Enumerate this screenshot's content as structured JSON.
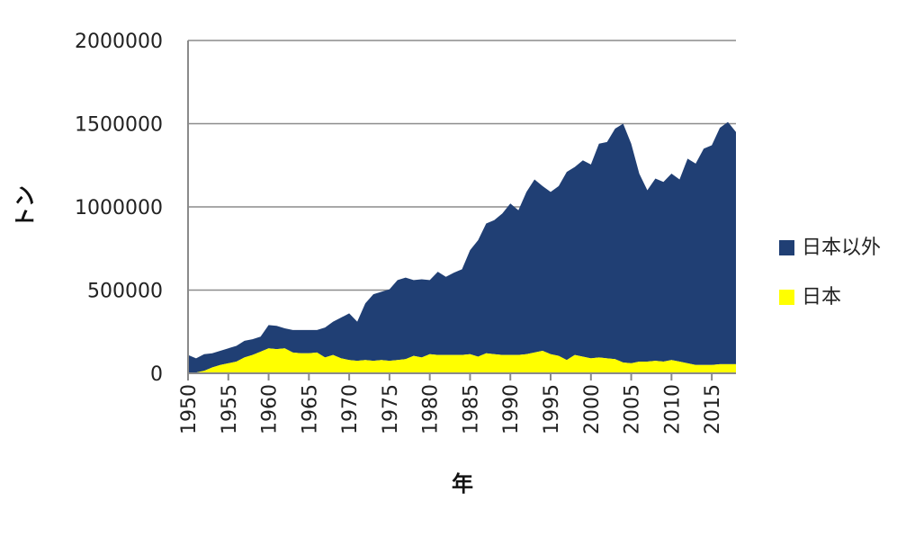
{
  "chart_data": {
    "type": "area",
    "stacked": true,
    "xlabel": "年",
    "ylabel": "トン",
    "ylim": [
      0,
      2000000
    ],
    "yticks": [
      0,
      500000,
      1000000,
      1500000,
      2000000
    ],
    "ytick_labels": [
      "0",
      "500000",
      "1000000",
      "1500000",
      "2000000"
    ],
    "xlim": [
      1950,
      2018
    ],
    "xticks": [
      1950,
      1955,
      1960,
      1965,
      1970,
      1975,
      1980,
      1985,
      1990,
      1995,
      2000,
      2005,
      2010,
      2015
    ],
    "xtick_labels": [
      "1950",
      "1955",
      "1960",
      "1965",
      "1970",
      "1975",
      "1980",
      "1985",
      "1990",
      "1995",
      "2000",
      "2005",
      "2010",
      "2015"
    ],
    "grid": "horizontal",
    "legend_position": "right",
    "x": [
      1950,
      1951,
      1952,
      1953,
      1954,
      1955,
      1956,
      1957,
      1958,
      1959,
      1960,
      1961,
      1962,
      1963,
      1964,
      1965,
      1966,
      1967,
      1968,
      1969,
      1970,
      1971,
      1972,
      1973,
      1974,
      1975,
      1976,
      1977,
      1978,
      1979,
      1980,
      1981,
      1982,
      1983,
      1984,
      1985,
      1986,
      1987,
      1988,
      1989,
      1990,
      1991,
      1992,
      1993,
      1994,
      1995,
      1996,
      1997,
      1998,
      1999,
      2000,
      2001,
      2002,
      2003,
      2004,
      2005,
      2006,
      2007,
      2008,
      2009,
      2010,
      2011,
      2012,
      2013,
      2014,
      2015,
      2016,
      2017,
      2018
    ],
    "series": [
      {
        "name": "日本",
        "color": "#ffff00",
        "values": [
          5000,
          5000,
          15000,
          35000,
          50000,
          60000,
          70000,
          95000,
          110000,
          130000,
          150000,
          145000,
          150000,
          125000,
          120000,
          120000,
          125000,
          95000,
          110000,
          90000,
          80000,
          75000,
          80000,
          75000,
          80000,
          75000,
          80000,
          85000,
          105000,
          95000,
          115000,
          110000,
          110000,
          110000,
          110000,
          115000,
          100000,
          120000,
          115000,
          110000,
          110000,
          110000,
          115000,
          125000,
          135000,
          115000,
          105000,
          80000,
          110000,
          100000,
          90000,
          95000,
          90000,
          85000,
          65000,
          60000,
          70000,
          70000,
          75000,
          70000,
          80000,
          70000,
          60000,
          50000,
          50000,
          50000,
          55000,
          55000,
          55000
        ]
      },
      {
        "name": "日本以外",
        "color": "#203f74",
        "values": [
          105000,
          85000,
          100000,
          85000,
          85000,
          90000,
          95000,
          100000,
          95000,
          90000,
          140000,
          140000,
          120000,
          135000,
          140000,
          140000,
          135000,
          180000,
          200000,
          245000,
          280000,
          235000,
          340000,
          400000,
          410000,
          430000,
          480000,
          490000,
          455000,
          470000,
          445000,
          500000,
          470000,
          495000,
          515000,
          625000,
          700000,
          780000,
          805000,
          850000,
          910000,
          870000,
          975000,
          1040000,
          990000,
          975000,
          1020000,
          1130000,
          1130000,
          1180000,
          1165000,
          1285000,
          1300000,
          1385000,
          1435000,
          1320000,
          1130000,
          1030000,
          1095000,
          1080000,
          1120000,
          1095000,
          1230000,
          1210000,
          1300000,
          1320000,
          1420000,
          1455000,
          1395000
        ]
      }
    ]
  }
}
